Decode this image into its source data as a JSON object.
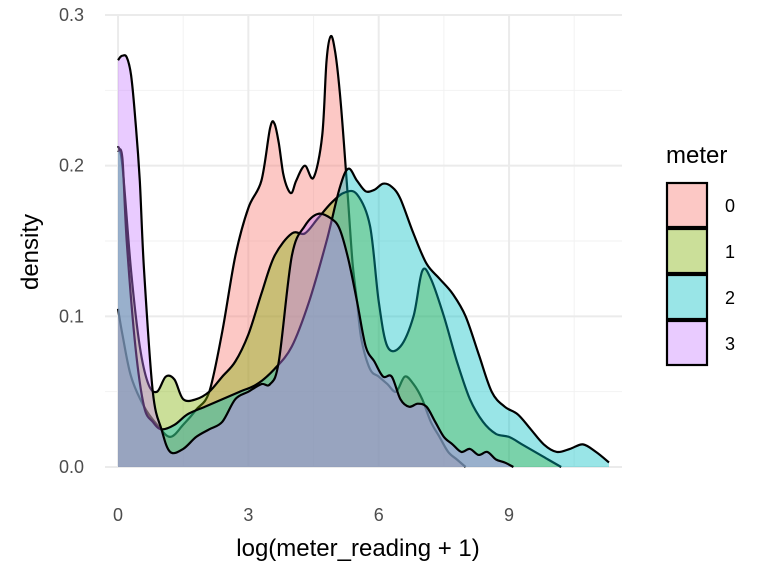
{
  "chart_data": {
    "type": "area",
    "subtype": "density",
    "title": "",
    "xlabel": "log(meter_reading + 1)",
    "ylabel": "density",
    "xlim": [
      -0.3,
      11.6
    ],
    "ylim": [
      0,
      0.3
    ],
    "xticks": [
      0,
      3,
      6,
      9
    ],
    "xtick_labels": [
      "0",
      "3",
      "6",
      "9"
    ],
    "yticks": [
      0.0,
      0.1,
      0.2,
      0.3
    ],
    "ytick_labels": [
      "0.0",
      "0.1",
      "0.2",
      "0.3"
    ],
    "grid": true,
    "legend": {
      "title": "meter",
      "position": "right"
    },
    "series": [
      {
        "name": "0",
        "color": "#F8766D",
        "x": [
          0,
          0.1,
          0.3,
          0.6,
          0.9,
          1.2,
          1.5,
          1.8,
          2.1,
          2.4,
          2.7,
          3.0,
          3.3,
          3.5,
          3.6,
          3.7,
          3.8,
          3.9,
          4.0,
          4.1,
          4.3,
          4.5,
          4.7,
          4.8,
          4.9,
          5.0,
          5.1,
          5.2,
          5.3,
          5.4,
          5.5,
          5.6,
          5.8,
          6.0,
          6.2,
          6.4,
          6.6,
          6.8,
          7.0,
          7.2,
          7.4,
          7.6,
          7.8,
          8.0
        ],
        "y": [
          0.105,
          0.088,
          0.06,
          0.04,
          0.028,
          0.02,
          0.028,
          0.038,
          0.05,
          0.09,
          0.14,
          0.172,
          0.19,
          0.225,
          0.228,
          0.215,
          0.195,
          0.185,
          0.182,
          0.19,
          0.2,
          0.192,
          0.22,
          0.27,
          0.286,
          0.275,
          0.25,
          0.215,
          0.175,
          0.135,
          0.11,
          0.085,
          0.065,
          0.06,
          0.055,
          0.05,
          0.06,
          0.055,
          0.045,
          0.03,
          0.02,
          0.01,
          0.005,
          0.0
        ]
      },
      {
        "name": "1",
        "color": "#7CAE00",
        "x": [
          0,
          0.1,
          0.3,
          0.5,
          0.7,
          0.9,
          1.1,
          1.3,
          1.5,
          1.8,
          2.1,
          2.4,
          2.7,
          3.0,
          3.3,
          3.6,
          4.0,
          4.3,
          4.6,
          4.9,
          5.2,
          5.5,
          5.8,
          6.0,
          6.2,
          6.5,
          6.8,
          7.0,
          7.2,
          7.5,
          7.8,
          8.1,
          8.4,
          8.7,
          9.0,
          9.3,
          9.6,
          9.9,
          10.2
        ],
        "y": [
          0.213,
          0.2,
          0.13,
          0.08,
          0.055,
          0.05,
          0.06,
          0.058,
          0.045,
          0.045,
          0.05,
          0.06,
          0.07,
          0.088,
          0.115,
          0.14,
          0.155,
          0.155,
          0.165,
          0.175,
          0.182,
          0.181,
          0.16,
          0.11,
          0.08,
          0.08,
          0.1,
          0.13,
          0.125,
          0.1,
          0.07,
          0.045,
          0.03,
          0.022,
          0.02,
          0.015,
          0.01,
          0.005,
          0.0
        ]
      },
      {
        "name": "2",
        "color": "#00BFC4",
        "x": [
          0,
          0.1,
          0.2,
          0.4,
          0.6,
          0.8,
          1.0,
          1.3,
          1.6,
          2.0,
          2.4,
          2.8,
          3.2,
          3.6,
          4.0,
          4.4,
          4.8,
          5.1,
          5.3,
          5.5,
          5.7,
          5.9,
          6.1,
          6.3,
          6.5,
          6.8,
          7.1,
          7.4,
          7.7,
          8.0,
          8.3,
          8.6,
          8.9,
          9.2,
          9.5,
          9.8,
          10.1,
          10.4,
          10.7,
          11.0,
          11.3
        ],
        "y": [
          0.21,
          0.205,
          0.15,
          0.08,
          0.04,
          0.03,
          0.025,
          0.028,
          0.035,
          0.04,
          0.045,
          0.05,
          0.055,
          0.065,
          0.08,
          0.11,
          0.15,
          0.185,
          0.198,
          0.19,
          0.183,
          0.184,
          0.188,
          0.186,
          0.178,
          0.155,
          0.135,
          0.125,
          0.115,
          0.1,
          0.075,
          0.05,
          0.04,
          0.035,
          0.025,
          0.015,
          0.01,
          0.012,
          0.015,
          0.01,
          0.003
        ]
      },
      {
        "name": "3",
        "color": "#C77CFF",
        "x": [
          0,
          0.05,
          0.1,
          0.2,
          0.3,
          0.4,
          0.5,
          0.6,
          0.8,
          1.0,
          1.2,
          1.5,
          1.8,
          2.1,
          2.4,
          2.7,
          3.0,
          3.3,
          3.5,
          3.7,
          4.0,
          4.3,
          4.6,
          4.9,
          5.1,
          5.3,
          5.5,
          5.7,
          5.9,
          6.1,
          6.3,
          6.5,
          6.7,
          6.9,
          7.1,
          7.3,
          7.5,
          7.7,
          7.9,
          8.1,
          8.3,
          8.5,
          8.7,
          8.9,
          9.1
        ],
        "y": [
          0.27,
          0.272,
          0.273,
          0.272,
          0.26,
          0.23,
          0.19,
          0.13,
          0.05,
          0.025,
          0.01,
          0.012,
          0.02,
          0.025,
          0.03,
          0.045,
          0.05,
          0.055,
          0.055,
          0.07,
          0.14,
          0.16,
          0.168,
          0.165,
          0.158,
          0.138,
          0.11,
          0.08,
          0.07,
          0.06,
          0.06,
          0.045,
          0.04,
          0.042,
          0.04,
          0.03,
          0.02,
          0.015,
          0.01,
          0.012,
          0.008,
          0.01,
          0.005,
          0.003,
          0.0
        ]
      }
    ]
  }
}
